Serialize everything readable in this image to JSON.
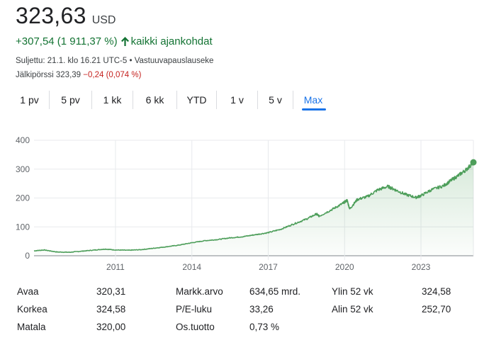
{
  "quote": {
    "price": "323,63",
    "currency": "USD",
    "change": "+307,54 (1 911,37 %)",
    "change_period": "kaikki ajankohdat",
    "closed_info": "Suljettu: 21.1. klo 16.21 UTC-5",
    "separator": "•",
    "disclaimer": "Vastuuvapauslauseke",
    "after_hours_label": "Jälkipörssi",
    "after_hours_price": "323,39",
    "after_hours_change": "−0,24 (0,074 %)",
    "colors": {
      "positive": "#137333",
      "negative": "#c5221f",
      "accent": "#1a73e8",
      "line": "#4d9e5a"
    }
  },
  "tabs": [
    {
      "label": "1 pv"
    },
    {
      "label": "5 pv"
    },
    {
      "label": "1 kk"
    },
    {
      "label": "6 kk"
    },
    {
      "label": "YTD"
    },
    {
      "label": "1 v"
    },
    {
      "label": "5 v"
    },
    {
      "label": "Max",
      "active": true
    }
  ],
  "chart_data": {
    "type": "area",
    "x_ticks": [
      2011,
      2014,
      2017,
      2020,
      2023
    ],
    "y_ticks": [
      0,
      100,
      200,
      300,
      400
    ],
    "ylim": [
      0,
      400
    ],
    "xlim": [
      2007.8,
      2025.06
    ],
    "grid": true,
    "series": [
      {
        "points": [
          [
            2007.8,
            17
          ],
          [
            2008.2,
            20
          ],
          [
            2008.7,
            13
          ],
          [
            2009.2,
            12
          ],
          [
            2009.7,
            16
          ],
          [
            2010.2,
            20
          ],
          [
            2010.6,
            23
          ],
          [
            2011.0,
            20
          ],
          [
            2011.5,
            19
          ],
          [
            2012.0,
            21
          ],
          [
            2012.5,
            26
          ],
          [
            2013.0,
            31
          ],
          [
            2013.5,
            37
          ],
          [
            2014.0,
            45
          ],
          [
            2014.5,
            52
          ],
          [
            2015.0,
            56
          ],
          [
            2015.5,
            62
          ],
          [
            2016.0,
            66
          ],
          [
            2016.5,
            73
          ],
          [
            2017.0,
            80
          ],
          [
            2017.5,
            92
          ],
          [
            2018.0,
            110
          ],
          [
            2018.5,
            127
          ],
          [
            2018.9,
            145
          ],
          [
            2019.0,
            137
          ],
          [
            2019.5,
            160
          ],
          [
            2019.9,
            180
          ],
          [
            2020.1,
            192
          ],
          [
            2020.2,
            162
          ],
          [
            2020.5,
            195
          ],
          [
            2020.9,
            205
          ],
          [
            2021.3,
            228
          ],
          [
            2021.7,
            240
          ],
          [
            2022.0,
            228
          ],
          [
            2022.4,
            212
          ],
          [
            2022.8,
            202
          ],
          [
            2023.0,
            208
          ],
          [
            2023.4,
            228
          ],
          [
            2023.9,
            243
          ],
          [
            2024.2,
            262
          ],
          [
            2024.5,
            280
          ],
          [
            2024.8,
            300
          ],
          [
            2025.06,
            323.63
          ]
        ]
      }
    ]
  },
  "stats": {
    "col1": [
      {
        "label": "Avaa",
        "value": "320,31"
      },
      {
        "label": "Korkea",
        "value": "324,58"
      },
      {
        "label": "Matala",
        "value": "320,00"
      }
    ],
    "col2": [
      {
        "label": "Markk.arvo",
        "value": "634,65 mrd."
      },
      {
        "label": "P/E-luku",
        "value": "33,26"
      },
      {
        "label": "Os.tuotto",
        "value": "0,73 %"
      }
    ],
    "col3": [
      {
        "label": "Ylin 52 vk",
        "value": "324,58"
      },
      {
        "label": "Alin 52 vk",
        "value": "252,70"
      }
    ]
  }
}
